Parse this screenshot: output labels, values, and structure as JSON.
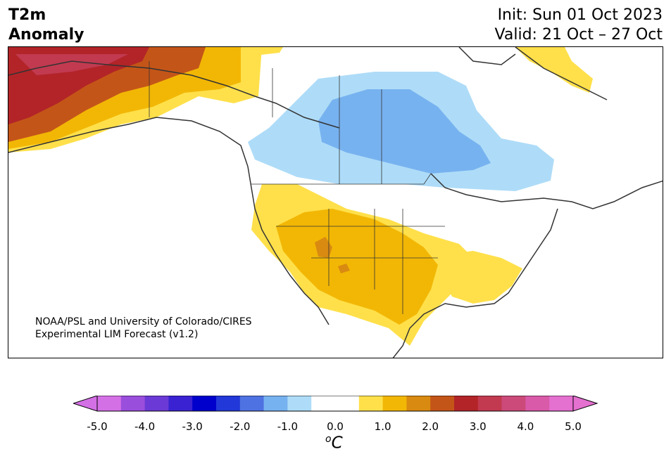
{
  "header": {
    "variable_line1": "T2m",
    "variable_line2": "Anomaly",
    "init": "Init: Sun 01 Oct 2023",
    "valid": "Valid: 21 Oct – 27 Oct"
  },
  "map": {
    "credit_line1": "NOAA/PSL and University of Colorado/CIRES",
    "credit_line2": "Experimental LIM Forecast (v1.2)",
    "region": "North America",
    "anomalies": [
      {
        "region": "Alaska",
        "level": "strong warm",
        "color": "#b22428"
      },
      {
        "region": "Northwest Canada",
        "level": "moderate warm",
        "color": "#f2b705"
      },
      {
        "region": "Greenland",
        "level": "weak warm",
        "color": "#ffe04a"
      },
      {
        "region": "Central Canada",
        "level": "moderate cold",
        "color": "#77b2f0"
      },
      {
        "region": "Southwest US",
        "level": "moderate warm",
        "color": "#f2b705"
      },
      {
        "region": "Southeast US",
        "level": "weak warm",
        "color": "#ffe04a"
      }
    ]
  },
  "colorbar": {
    "unit_base": "C",
    "unit_sup": "o",
    "ticks": [
      "-5.0",
      "-4.0",
      "-3.0",
      "-2.0",
      "-1.0",
      "0.0",
      "1.0",
      "2.0",
      "3.0",
      "4.0",
      "5.0"
    ],
    "colors": [
      "#d470e6",
      "#9a4edc",
      "#6b3ad6",
      "#3a22d2",
      "#0000cc",
      "#2238d8",
      "#4f72e2",
      "#77b2f0",
      "#aedcf8",
      "#ffffff",
      "#ffffff",
      "#ffe04a",
      "#f2b705",
      "#d98a10",
      "#c45518",
      "#b22428",
      "#c23a50",
      "#cc4a7a",
      "#d85aa8",
      "#e470d0"
    ],
    "extend_min_color": "#d470e6",
    "extend_max_color": "#e470d0"
  }
}
